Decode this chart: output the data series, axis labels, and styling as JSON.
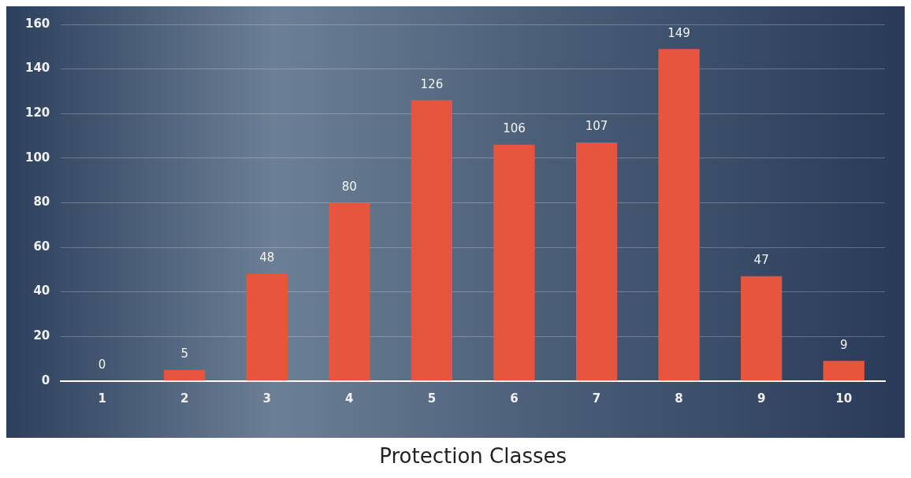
{
  "chart_data": {
    "type": "bar",
    "xlabel": "Protection Classes",
    "categories": [
      "1",
      "2",
      "3",
      "4",
      "5",
      "6",
      "7",
      "8",
      "9",
      "10"
    ],
    "values": [
      0,
      5,
      48,
      80,
      126,
      106,
      107,
      149,
      47,
      9
    ],
    "color": "#e8553e",
    "ylim": [
      0,
      160
    ],
    "yticks": [
      0,
      20,
      40,
      60,
      80,
      100,
      120,
      140,
      160
    ],
    "grid": "y",
    "data_labels": true,
    "legend": false
  }
}
